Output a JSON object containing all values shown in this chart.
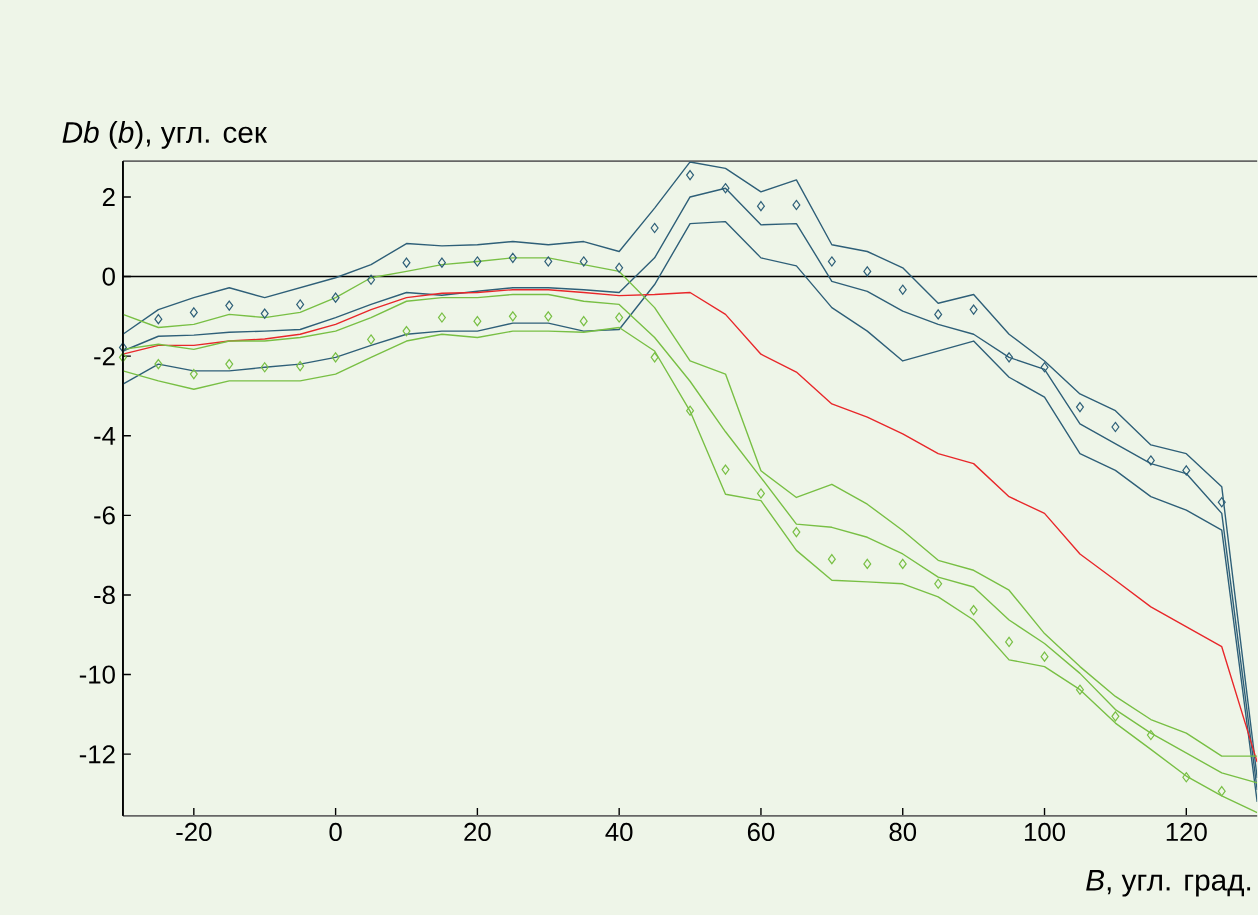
{
  "chart_data": {
    "type": "line",
    "xlabel": "*B*, угл. град.",
    "ylabel": "*Db* (*b*), угл. сек",
    "x": [
      -30,
      -25,
      -20,
      -15,
      -10,
      -5,
      0,
      5,
      10,
      15,
      20,
      25,
      30,
      35,
      40,
      45,
      50,
      55,
      60,
      65,
      70,
      75,
      80,
      85,
      90,
      95,
      100,
      105,
      110,
      115,
      120,
      125,
      130
    ],
    "xlim": [
      -30,
      130
    ],
    "ylim": [
      -13.55,
      2.9
    ],
    "xticks": [
      -20,
      0,
      20,
      40,
      60,
      80,
      100,
      120
    ],
    "yticks": [
      -12,
      -10,
      -8,
      -6,
      -4,
      -2,
      0,
      2
    ],
    "grid": false,
    "marker": "none",
    "line_style": "solid",
    "ref_lines": [
      {
        "axis": "y",
        "value": 0,
        "color": "#000000"
      }
    ],
    "series": [
      {
        "color": "#2e5f78",
        "values": [
          -1.45,
          -0.83,
          -0.53,
          -0.28,
          -0.53,
          -0.28,
          -0.03,
          0.3,
          0.83,
          0.77,
          0.8,
          0.88,
          0.8,
          0.88,
          0.63,
          1.72,
          2.88,
          2.72,
          2.13,
          2.43,
          0.8,
          0.63,
          0.22,
          -0.67,
          -0.45,
          -1.45,
          -2.12,
          -2.95,
          -3.37,
          -4.23,
          -4.45,
          -5.28,
          -12.6
        ]
      },
      {
        "color": "#2e5f78",
        "values": [
          -1.87,
          -1.5,
          -1.47,
          -1.4,
          -1.37,
          -1.33,
          -1.03,
          -0.7,
          -0.4,
          -0.47,
          -0.37,
          -0.28,
          -0.28,
          -0.33,
          -0.4,
          0.47,
          2.0,
          2.22,
          1.3,
          1.33,
          -0.12,
          -0.37,
          -0.87,
          -1.2,
          -1.45,
          -2.03,
          -2.33,
          -3.7,
          -4.2,
          -4.7,
          -4.95,
          -5.95,
          -12.9
        ]
      },
      {
        "color": "#2e5f78",
        "values": [
          -2.7,
          -2.2,
          -2.37,
          -2.37,
          -2.28,
          -2.2,
          -2.03,
          -1.73,
          -1.45,
          -1.37,
          -1.37,
          -1.17,
          -1.17,
          -1.37,
          -1.33,
          -0.2,
          1.33,
          1.38,
          0.47,
          0.27,
          -0.78,
          -1.37,
          -2.12,
          -1.87,
          -1.62,
          -2.53,
          -3.03,
          -4.45,
          -4.87,
          -5.53,
          -5.87,
          -6.37,
          -13.2
        ]
      },
      {
        "type": "scatter",
        "marker": "diamond",
        "color": "#2e5f78",
        "values": [
          -1.78,
          -1.07,
          -0.9,
          -0.73,
          -0.93,
          -0.7,
          -0.53,
          -0.08,
          0.35,
          0.35,
          0.38,
          0.47,
          0.38,
          0.38,
          0.22,
          1.22,
          2.55,
          2.22,
          1.77,
          1.8,
          0.38,
          0.13,
          -0.33,
          -0.95,
          -0.83,
          -2.03,
          -2.28,
          -3.28,
          -3.78,
          -4.62,
          -4.87,
          -5.67,
          null
        ]
      },
      {
        "color": "#e8272a",
        "values": [
          -1.95,
          -1.73,
          -1.73,
          -1.62,
          -1.57,
          -1.45,
          -1.2,
          -0.83,
          -0.53,
          -0.42,
          -0.4,
          -0.33,
          -0.33,
          -0.4,
          -0.48,
          -0.45,
          -0.4,
          -0.95,
          -1.95,
          -2.4,
          -3.2,
          -3.53,
          -3.95,
          -4.45,
          -4.7,
          -5.53,
          -5.95,
          -6.97,
          -7.63,
          -8.3,
          -8.8,
          -9.3,
          -12.2
        ]
      },
      {
        "color": "#78bf44",
        "values": [
          -0.95,
          -1.28,
          -1.2,
          -0.95,
          -1.03,
          -0.9,
          -0.53,
          -0.03,
          0.13,
          0.3,
          0.38,
          0.47,
          0.47,
          0.3,
          0.13,
          -0.78,
          -2.12,
          -2.45,
          -4.88,
          -5.55,
          -5.22,
          -5.72,
          -6.38,
          -7.13,
          -7.38,
          -7.88,
          -8.97,
          -9.8,
          -10.55,
          -11.13,
          -11.47,
          -12.05,
          -12.05
        ]
      },
      {
        "color": "#78bf44",
        "values": [
          -1.83,
          -1.7,
          -1.83,
          -1.62,
          -1.62,
          -1.53,
          -1.37,
          -1.03,
          -0.62,
          -0.53,
          -0.53,
          -0.45,
          -0.45,
          -0.62,
          -0.7,
          -1.53,
          -2.63,
          -3.9,
          -5.05,
          -6.22,
          -6.3,
          -6.55,
          -6.97,
          -7.55,
          -7.8,
          -8.63,
          -9.22,
          -9.97,
          -10.88,
          -11.47,
          -11.97,
          -12.47,
          -12.72
        ]
      },
      {
        "color": "#78bf44",
        "values": [
          -2.37,
          -2.62,
          -2.83,
          -2.62,
          -2.62,
          -2.62,
          -2.45,
          -2.03,
          -1.62,
          -1.45,
          -1.53,
          -1.37,
          -1.37,
          -1.4,
          -1.28,
          -1.87,
          -3.38,
          -5.47,
          -5.63,
          -6.88,
          -7.63,
          -7.67,
          -7.72,
          -8.05,
          -8.63,
          -9.63,
          -9.8,
          -10.38,
          -11.22,
          -11.88,
          -12.55,
          -13.05,
          -13.47
        ]
      },
      {
        "type": "scatter",
        "marker": "diamond",
        "color": "#78bf44",
        "values": [
          -2.03,
          -2.2,
          -2.45,
          -2.2,
          -2.28,
          -2.25,
          -2.03,
          -1.58,
          -1.37,
          -1.03,
          -1.12,
          -1.0,
          -1.0,
          -1.12,
          -1.03,
          -2.03,
          -3.37,
          -4.85,
          -5.45,
          -6.42,
          -7.1,
          -7.22,
          -7.22,
          -7.72,
          -8.38,
          -9.18,
          -9.55,
          -10.38,
          -11.05,
          -11.52,
          -12.58,
          -12.93,
          null
        ]
      }
    ]
  }
}
